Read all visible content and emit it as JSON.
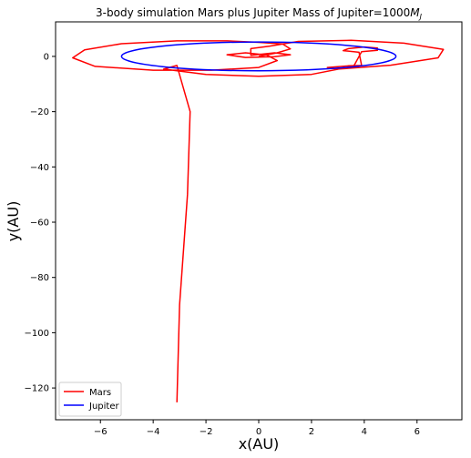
{
  "chart_data": {
    "type": "line",
    "title_main": "3-body simulation  Mars plus Jupiter  Mass of Jupiter=1000",
    "title_mass_symbol": "M",
    "title_mass_subscript": "J",
    "xlabel": "x(AU)",
    "ylabel": "y(AU)",
    "xlim": [
      -7.7,
      7.7
    ],
    "ylim": [
      -131.5,
      12.5
    ],
    "xticks": [
      -6,
      -4,
      -2,
      0,
      2,
      4,
      6
    ],
    "yticks": [
      0,
      -20,
      -40,
      -60,
      -80,
      -100,
      -120
    ],
    "grid": false,
    "legend_position": "lower-left",
    "series": [
      {
        "name": "Mars",
        "color": "#ff0000",
        "x": [
          0,
          0.7,
          1.2,
          0.9,
          0,
          -1.2,
          -3.1,
          -5.2,
          -6.6,
          -7.05,
          -6.2,
          -4.0,
          -1.8,
          0,
          0.7,
          0.3,
          -0.5,
          -1.2,
          -0.5,
          0.6,
          1.2,
          0.6,
          -0.3,
          -0.3,
          0.4,
          1.5,
          3.5,
          5.5,
          7.0,
          6.8,
          5.0,
          3.0,
          2.6,
          3.4,
          3.9,
          3.8,
          3.2,
          3.4,
          4.0,
          4.5,
          4.5,
          3.9,
          3.6,
          2.0,
          0,
          -2.0,
          -3.6,
          -3.1,
          -2.6,
          -2.7,
          -3.0,
          -3.1
        ],
        "y": [
          0,
          1.3,
          2.7,
          4.5,
          5.1,
          5.6,
          5.6,
          4.6,
          2.4,
          -0.5,
          -3.6,
          -5.0,
          -5.0,
          -4.0,
          -1.5,
          0.5,
          1.3,
          0.6,
          -0.4,
          -0.1,
          0.6,
          1.3,
          0.4,
          2.8,
          3.7,
          5.4,
          5.8,
          4.8,
          2.5,
          -0.5,
          -3.2,
          -4.6,
          -4.0,
          -3.4,
          -3.3,
          1.5,
          2.1,
          2.8,
          3.4,
          3.0,
          2.2,
          1.7,
          -3.5,
          -6.5,
          -7.2,
          -6.5,
          -4.6,
          -3.3,
          -20,
          -50,
          -90,
          -125.2
        ]
      },
      {
        "name": "Jupiter",
        "color": "#0000ff",
        "shape": "ellipse",
        "center": [
          0,
          0
        ],
        "radius_x": 5.2,
        "radius_y": 5.2
      }
    ]
  }
}
